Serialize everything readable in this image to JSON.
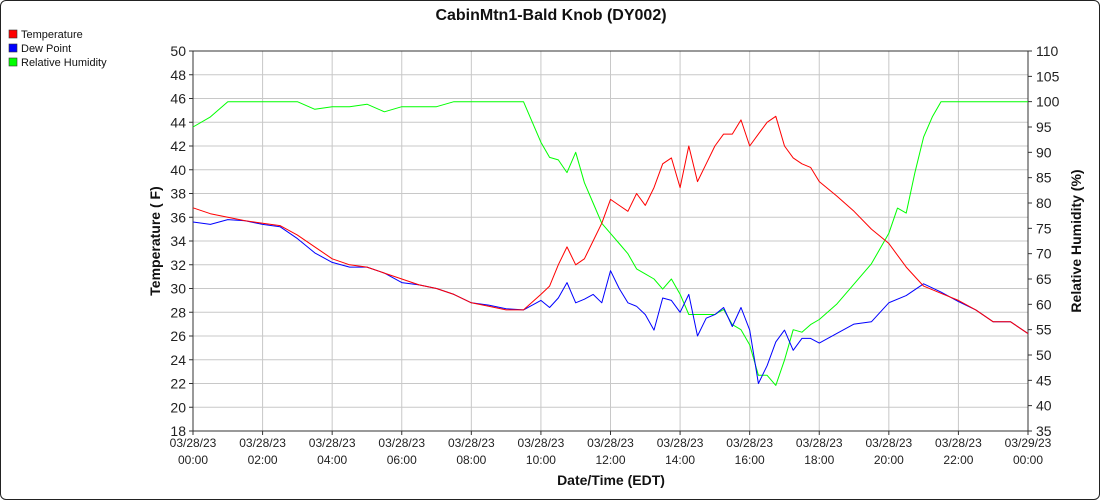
{
  "chart_data": {
    "type": "line",
    "title": "CabinMtn1-Bald Knob (DY002)",
    "xlabel": "Date/Time (EDT)",
    "ylabel": "Temperature ( F)",
    "y2label": "Relative Humidity (%)",
    "ylim": [
      18,
      50
    ],
    "y2lim": [
      35,
      110
    ],
    "yticks": [
      "18",
      "20",
      "22",
      "24",
      "26",
      "28",
      "30",
      "32",
      "34",
      "36",
      "38",
      "40",
      "42",
      "44",
      "46",
      "48",
      "50"
    ],
    "y2ticks": [
      "35",
      "40",
      "45",
      "50",
      "55",
      "60",
      "65",
      "70",
      "75",
      "80",
      "85",
      "90",
      "95",
      "100",
      "105",
      "110"
    ],
    "xticks": [
      {
        "date": "03/28/23",
        "time": "00:00"
      },
      {
        "date": "03/28/23",
        "time": "02:00"
      },
      {
        "date": "03/28/23",
        "time": "04:00"
      },
      {
        "date": "03/28/23",
        "time": "06:00"
      },
      {
        "date": "03/28/23",
        "time": "08:00"
      },
      {
        "date": "03/28/23",
        "time": "10:00"
      },
      {
        "date": "03/28/23",
        "time": "12:00"
      },
      {
        "date": "03/28/23",
        "time": "14:00"
      },
      {
        "date": "03/28/23",
        "time": "16:00"
      },
      {
        "date": "03/28/23",
        "time": "18:00"
      },
      {
        "date": "03/28/23",
        "time": "20:00"
      },
      {
        "date": "03/28/23",
        "time": "22:00"
      },
      {
        "date": "03/29/23",
        "time": "00:00"
      }
    ],
    "grid": true,
    "legend_position": "top-left",
    "x_unit": "hours",
    "series": [
      {
        "name": "Temperature",
        "axis": "left",
        "color": "#ff0000",
        "points": [
          [
            0,
            36.8
          ],
          [
            0.5,
            36.3
          ],
          [
            1,
            36.0
          ],
          [
            1.5,
            35.7
          ],
          [
            2,
            35.5
          ],
          [
            2.5,
            35.3
          ],
          [
            3,
            34.5
          ],
          [
            3.5,
            33.5
          ],
          [
            4,
            32.5
          ],
          [
            4.5,
            32.0
          ],
          [
            5,
            31.8
          ],
          [
            5.5,
            31.3
          ],
          [
            6,
            30.8
          ],
          [
            6.5,
            30.3
          ],
          [
            7,
            30.0
          ],
          [
            7.5,
            29.5
          ],
          [
            8,
            28.8
          ],
          [
            8.5,
            28.5
          ],
          [
            9,
            28.2
          ],
          [
            9.5,
            28.2
          ],
          [
            10,
            29.5
          ],
          [
            10.25,
            30.2
          ],
          [
            10.5,
            32.0
          ],
          [
            10.75,
            33.5
          ],
          [
            11,
            32.0
          ],
          [
            11.25,
            32.5
          ],
          [
            11.5,
            34.0
          ],
          [
            11.75,
            35.5
          ],
          [
            12,
            37.5
          ],
          [
            12.25,
            37.0
          ],
          [
            12.5,
            36.5
          ],
          [
            12.75,
            38.0
          ],
          [
            13,
            37.0
          ],
          [
            13.25,
            38.5
          ],
          [
            13.5,
            40.5
          ],
          [
            13.75,
            41.0
          ],
          [
            14,
            38.5
          ],
          [
            14.25,
            42.0
          ],
          [
            14.5,
            39.0
          ],
          [
            14.75,
            40.5
          ],
          [
            15,
            42.0
          ],
          [
            15.25,
            43.0
          ],
          [
            15.5,
            43.0
          ],
          [
            15.75,
            44.2
          ],
          [
            16,
            42.0
          ],
          [
            16.25,
            43.0
          ],
          [
            16.5,
            44.0
          ],
          [
            16.75,
            44.5
          ],
          [
            17,
            42.0
          ],
          [
            17.25,
            41.0
          ],
          [
            17.5,
            40.5
          ],
          [
            17.75,
            40.2
          ],
          [
            18,
            39.0
          ],
          [
            18.5,
            37.8
          ],
          [
            19,
            36.5
          ],
          [
            19.5,
            35.0
          ],
          [
            20,
            33.8
          ],
          [
            20.5,
            31.8
          ],
          [
            21,
            30.2
          ],
          [
            21.5,
            29.6
          ],
          [
            22,
            29.0
          ],
          [
            22.5,
            28.2
          ],
          [
            23,
            27.2
          ],
          [
            23.5,
            27.2
          ],
          [
            24,
            26.2
          ]
        ]
      },
      {
        "name": "Dew Point",
        "axis": "left",
        "color": "#0000ff",
        "points": [
          [
            0,
            35.6
          ],
          [
            0.5,
            35.4
          ],
          [
            1,
            35.8
          ],
          [
            1.5,
            35.7
          ],
          [
            2,
            35.4
          ],
          [
            2.5,
            35.2
          ],
          [
            3,
            34.2
          ],
          [
            3.5,
            33.0
          ],
          [
            4,
            32.2
          ],
          [
            4.5,
            31.8
          ],
          [
            5,
            31.8
          ],
          [
            5.5,
            31.3
          ],
          [
            6,
            30.5
          ],
          [
            6.5,
            30.3
          ],
          [
            7,
            30.0
          ],
          [
            7.5,
            29.5
          ],
          [
            8,
            28.8
          ],
          [
            8.5,
            28.6
          ],
          [
            9,
            28.3
          ],
          [
            9.5,
            28.2
          ],
          [
            10,
            29.0
          ],
          [
            10.25,
            28.4
          ],
          [
            10.5,
            29.2
          ],
          [
            10.75,
            30.5
          ],
          [
            11,
            28.8
          ],
          [
            11.25,
            29.1
          ],
          [
            11.5,
            29.5
          ],
          [
            11.75,
            28.8
          ],
          [
            12,
            31.5
          ],
          [
            12.25,
            30.0
          ],
          [
            12.5,
            28.8
          ],
          [
            12.75,
            28.5
          ],
          [
            13,
            27.8
          ],
          [
            13.25,
            26.5
          ],
          [
            13.5,
            29.2
          ],
          [
            13.75,
            29.0
          ],
          [
            14,
            28.0
          ],
          [
            14.25,
            29.5
          ],
          [
            14.5,
            26.0
          ],
          [
            14.75,
            27.5
          ],
          [
            15,
            27.8
          ],
          [
            15.25,
            28.4
          ],
          [
            15.5,
            26.8
          ],
          [
            15.75,
            28.4
          ],
          [
            16,
            26.5
          ],
          [
            16.25,
            22.0
          ],
          [
            16.5,
            23.5
          ],
          [
            16.75,
            25.5
          ],
          [
            17,
            26.5
          ],
          [
            17.25,
            24.8
          ],
          [
            17.5,
            25.8
          ],
          [
            17.75,
            25.8
          ],
          [
            18,
            25.4
          ],
          [
            18.5,
            26.2
          ],
          [
            19,
            27.0
          ],
          [
            19.5,
            27.2
          ],
          [
            20,
            28.8
          ],
          [
            20.5,
            29.4
          ],
          [
            21,
            30.4
          ],
          [
            21.5,
            29.7
          ],
          [
            22,
            28.9
          ],
          [
            22.5,
            28.2
          ],
          [
            23,
            27.2
          ],
          [
            23.5,
            27.2
          ],
          [
            24,
            26.2
          ]
        ]
      },
      {
        "name": "Relative Humidity",
        "axis": "right",
        "color": "#00ff00",
        "points": [
          [
            0,
            95
          ],
          [
            0.5,
            97
          ],
          [
            1,
            100
          ],
          [
            1.5,
            100
          ],
          [
            2,
            100
          ],
          [
            2.5,
            100
          ],
          [
            3,
            100
          ],
          [
            3.5,
            98.5
          ],
          [
            4,
            99
          ],
          [
            4.5,
            99
          ],
          [
            5,
            99.5
          ],
          [
            5.5,
            98
          ],
          [
            6,
            99
          ],
          [
            6.5,
            99
          ],
          [
            7,
            99
          ],
          [
            7.5,
            100
          ],
          [
            8,
            100
          ],
          [
            8.5,
            100
          ],
          [
            9,
            100
          ],
          [
            9.5,
            100
          ],
          [
            10,
            92
          ],
          [
            10.25,
            89
          ],
          [
            10.5,
            88.5
          ],
          [
            10.75,
            86
          ],
          [
            11,
            90
          ],
          [
            11.25,
            84
          ],
          [
            11.5,
            80
          ],
          [
            11.75,
            76
          ],
          [
            12,
            74
          ],
          [
            12.25,
            72
          ],
          [
            12.5,
            70
          ],
          [
            12.75,
            67
          ],
          [
            13,
            66
          ],
          [
            13.25,
            65
          ],
          [
            13.5,
            63
          ],
          [
            13.75,
            65
          ],
          [
            14,
            62
          ],
          [
            14.25,
            58
          ],
          [
            14.5,
            58
          ],
          [
            14.75,
            58
          ],
          [
            15,
            58
          ],
          [
            15.25,
            59
          ],
          [
            15.5,
            56
          ],
          [
            15.75,
            55
          ],
          [
            16,
            52
          ],
          [
            16.25,
            46
          ],
          [
            16.5,
            46
          ],
          [
            16.75,
            44
          ],
          [
            17,
            49
          ],
          [
            17.25,
            55
          ],
          [
            17.5,
            54.5
          ],
          [
            17.75,
            56
          ],
          [
            18,
            57
          ],
          [
            18.5,
            60
          ],
          [
            19,
            64
          ],
          [
            19.5,
            68
          ],
          [
            20,
            74
          ],
          [
            20.25,
            79
          ],
          [
            20.5,
            78
          ],
          [
            20.75,
            86
          ],
          [
            21,
            93
          ],
          [
            21.25,
            97
          ],
          [
            21.5,
            100
          ],
          [
            22,
            100
          ],
          [
            22.5,
            100
          ],
          [
            23,
            100
          ],
          [
            23.5,
            100
          ],
          [
            24,
            100
          ]
        ]
      }
    ]
  }
}
